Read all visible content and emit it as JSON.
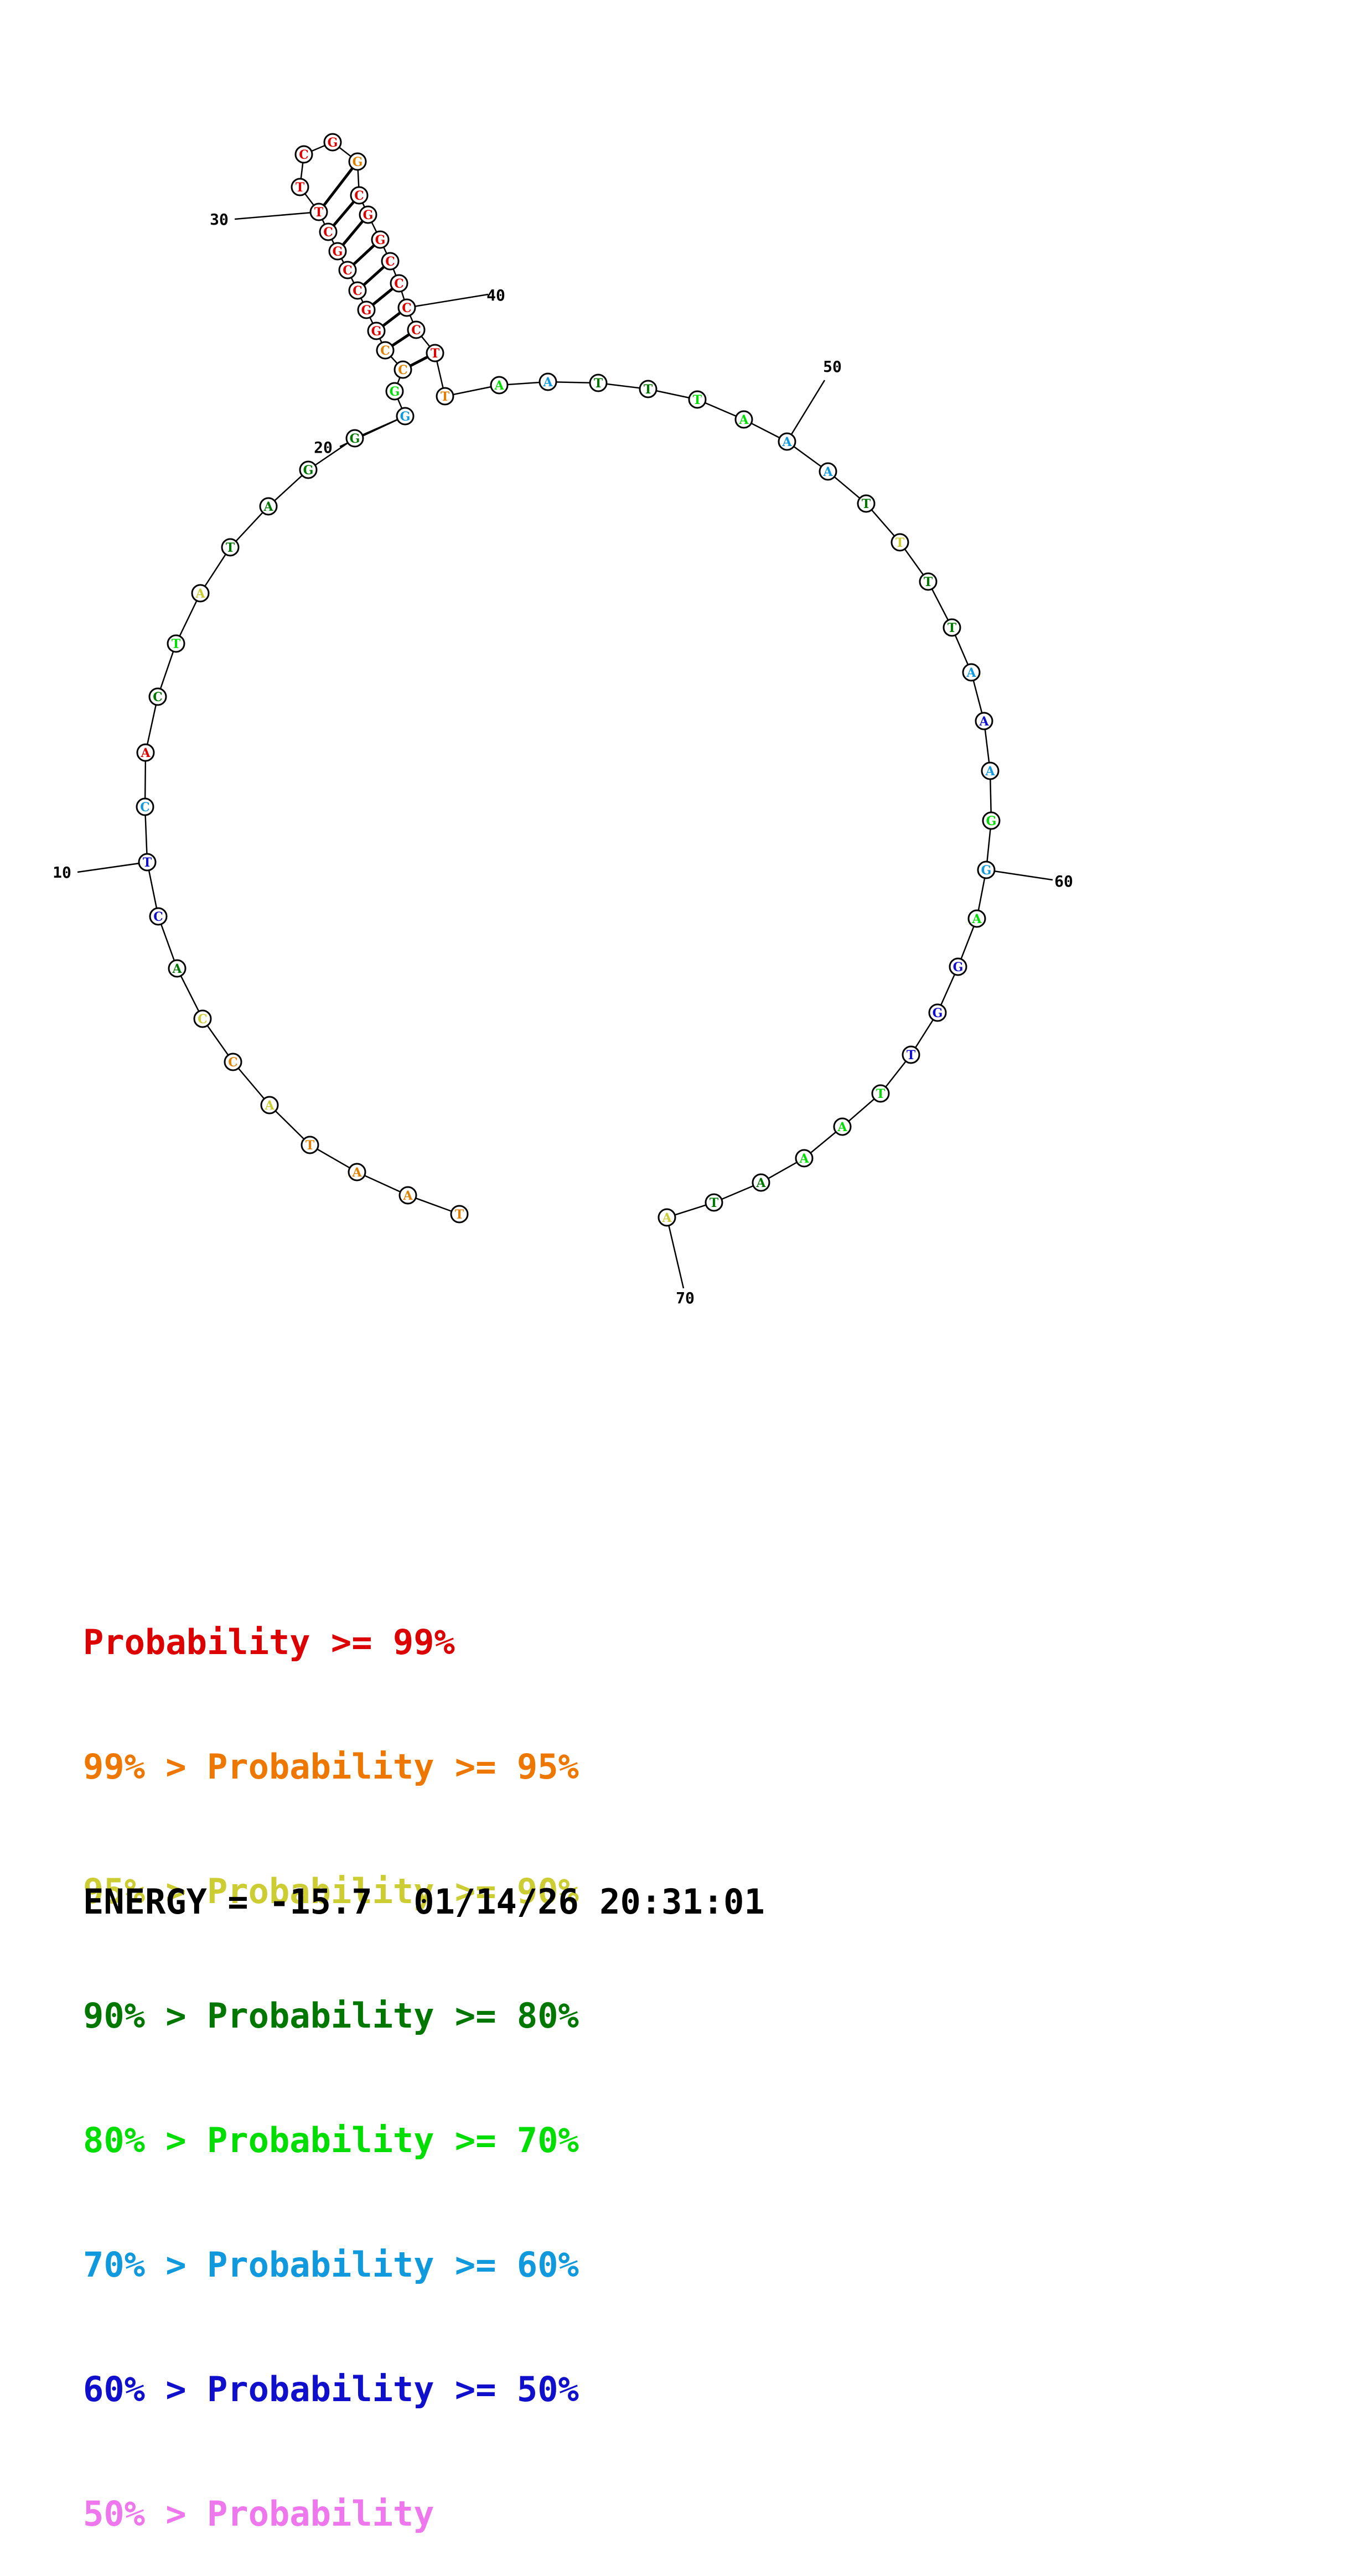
{
  "sequence": [
    "T",
    "A",
    "A",
    "T",
    "A",
    "C",
    "C",
    "A",
    "C",
    "T",
    "C",
    "A",
    "C",
    "T",
    "A",
    "T",
    "A",
    "G",
    "G",
    "G",
    "G",
    "C",
    "C",
    "G",
    "G",
    "C",
    "C",
    "G",
    "C",
    "T",
    "T",
    "C",
    "G",
    "G",
    "C",
    "G",
    "G",
    "C",
    "C",
    "C",
    "C",
    "T",
    "T",
    "A",
    "A",
    "T",
    "T",
    "T",
    "A",
    "A",
    "A",
    "T",
    "T",
    "T",
    "T",
    "A",
    "A",
    "A",
    "G",
    "G",
    "A",
    "G",
    "G",
    "T",
    "T",
    "A",
    "A",
    "A",
    "T",
    "A"
  ],
  "nucleotide_colors": [
    "#e08000",
    "#e08000",
    "#e08000",
    "#e08000",
    "#cccc33",
    "#e08000",
    "#cccc33",
    "#007700",
    "#1010cc",
    "#1010cc",
    "#1099dd",
    "#dd0000",
    "#007700",
    "#00dd00",
    "#cccc33",
    "#007700",
    "#007700",
    "#007700",
    "#007700",
    "#1099dd",
    "#00dd00",
    "#e08000",
    "#e08000",
    "#dd0000",
    "#dd0000",
    "#dd0000",
    "#dd0000",
    "#dd0000",
    "#dd0000",
    "#dd0000",
    "#dd0000",
    "#dd0000",
    "#dd0000",
    "#e08000",
    "#dd0000",
    "#dd0000",
    "#dd0000",
    "#dd0000",
    "#dd0000",
    "#dd0000",
    "#dd0000",
    "#dd0000",
    "#e08000",
    "#00dd00",
    "#1099dd",
    "#007700",
    "#007700",
    "#00dd00",
    "#00dd00",
    "#1099dd",
    "#1099dd",
    "#007700",
    "#cccc33",
    "#007700",
    "#007700",
    "#1099dd",
    "#1010cc",
    "#1099dd",
    "#00dd00",
    "#1099dd",
    "#00dd00",
    "#1010cc",
    "#1010cc",
    "#1010cc",
    "#00dd00",
    "#00dd00",
    "#00dd00",
    "#007700",
    "#007700",
    "#cccc33"
  ],
  "tick_labels": [
    "10",
    "20",
    "30",
    "40",
    "50",
    "60",
    "70"
  ],
  "legend": [
    {
      "prefix": "",
      "label": "Probability >= 99%",
      "color": "#dd0000"
    },
    {
      "prefix": "99% > ",
      "label": "Probability >= 95%",
      "color": "#ee7700"
    },
    {
      "prefix": "95% > ",
      "label": "Probability >= 90%",
      "color": "#cccc33"
    },
    {
      "prefix": "90% > ",
      "label": "Probability >= 80%",
      "color": "#007700"
    },
    {
      "prefix": "80% > ",
      "label": "Probability >= 70%",
      "color": "#00dd00"
    },
    {
      "prefix": "70% > ",
      "label": "Probability >= 60%",
      "color": "#1099dd"
    },
    {
      "prefix": "60% > ",
      "label": "Probability >= 50%",
      "color": "#1010cc"
    },
    {
      "prefix": "50% > ",
      "label": "Probability",
      "color": "#ee77ee"
    }
  ],
  "footer": {
    "energy_label": "ENERGY = ",
    "energy_value": "-15.7",
    "date": "01/14/26",
    "time": "20:31:01"
  }
}
